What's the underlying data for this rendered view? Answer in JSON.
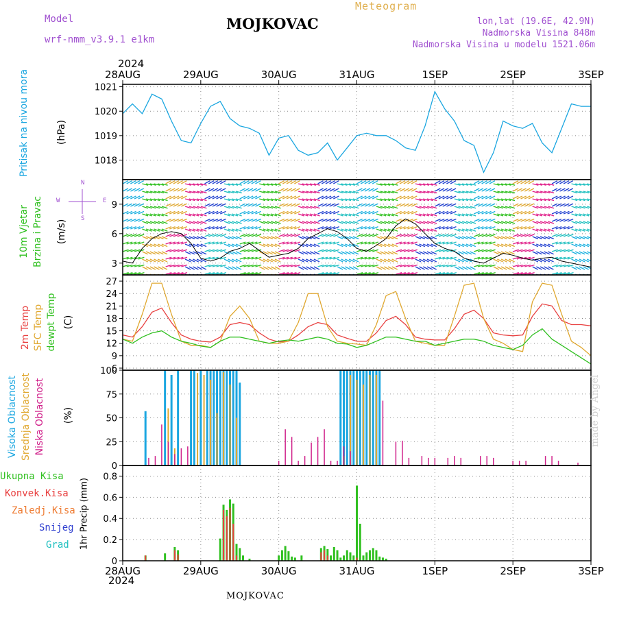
{
  "header": {
    "model_label": "Model",
    "model_name": "wrf-nmm_v3.9.1 e1km",
    "title": "MOJKOVAC",
    "subtitle": "Meteogram",
    "coords": "lon,lat (19.6E, 42.9N)",
    "elevation": "Nadmorska Visina 848m",
    "model_elevation": "Nadmorska Visina u modelu 1521.06m"
  },
  "footer": {
    "station": "MOJKOVAC"
  },
  "watermark": "made by Angel",
  "axis_top": {
    "year": "2024"
  },
  "axis_bottom": {
    "year": "2024"
  },
  "colors": {
    "pressure": "#1aa6e0",
    "wind_speed": "#000000",
    "temp2m": "#e84040",
    "sfc_temp": "#e0a830",
    "dewpt": "#30c020",
    "cloud_high": "#1aa6e0",
    "cloud_mid": "#e0a830",
    "cloud_low": "#d0208a",
    "precip_total": "#30c020",
    "precip_conv": "#e84040"
  },
  "chart_data": [
    {
      "type": "line",
      "ylabel": "Pritisak na nivou mora",
      "unit": "(hPa)",
      "ylim": [
        1017.2,
        1021.1
      ],
      "yticks": [
        1018,
        1019,
        1020,
        1021
      ],
      "x_tick_labels": [
        "28AUG",
        "29AUG",
        "30AUG",
        "31AUG",
        "1SEP",
        "2SEP",
        "3SEP"
      ],
      "series": [
        {
          "name": "",
          "x_hours": [
            0,
            3,
            6,
            9,
            12,
            15,
            18,
            21,
            24,
            27,
            30,
            33,
            36,
            39,
            42,
            45,
            48,
            51,
            54,
            57,
            60,
            63,
            66,
            69,
            72,
            75,
            78,
            81,
            84,
            87,
            90,
            93,
            96,
            99,
            102,
            105,
            108,
            111,
            114,
            117,
            120,
            123,
            126,
            129,
            132,
            135,
            138,
            141,
            144
          ],
          "values": [
            1019.9,
            1020.3,
            1019.9,
            1020.7,
            1020.5,
            1019.6,
            1018.8,
            1018.7,
            1019.5,
            1020.2,
            1020.4,
            1019.7,
            1019.4,
            1019.3,
            1019.1,
            1018.2,
            1018.9,
            1019.0,
            1018.4,
            1018.2,
            1018.3,
            1018.7,
            1018.0,
            1018.5,
            1019.0,
            1019.1,
            1019.0,
            1019.0,
            1018.8,
            1018.5,
            1018.4,
            1019.4,
            1020.8,
            1020.1,
            1019.6,
            1018.8,
            1018.6,
            1017.5,
            1018.3,
            1019.6,
            1019.4,
            1019.3,
            1019.5,
            1018.7,
            1018.3,
            1019.3,
            1020.3,
            1020.2,
            1020.2
          ]
        }
      ]
    },
    {
      "type": "line",
      "ylabel_1": "10m Vjetar",
      "ylabel_2": "Brzina i Pravac",
      "unit": "(m/s)",
      "compass": {
        "n": "N",
        "s": "S",
        "w": "W",
        "e": "E"
      },
      "ylim": [
        1.8,
        11.5
      ],
      "yticks": [
        3,
        6,
        9
      ],
      "series": [
        {
          "name": "",
          "x_hours": [
            0,
            3,
            6,
            9,
            12,
            15,
            18,
            21,
            24,
            27,
            30,
            33,
            36,
            39,
            42,
            45,
            48,
            51,
            54,
            57,
            60,
            63,
            66,
            69,
            72,
            75,
            78,
            81,
            84,
            87,
            90,
            93,
            96,
            99,
            102,
            105,
            108,
            111,
            114,
            117,
            120,
            123,
            126,
            129,
            132,
            135,
            138,
            141,
            144
          ],
          "values": [
            3.2,
            3.0,
            4.5,
            5.5,
            6.0,
            6.2,
            6.0,
            5.0,
            3.5,
            3.2,
            3.5,
            4.2,
            4.5,
            5.0,
            4.3,
            3.6,
            3.8,
            4.0,
            4.5,
            5.5,
            6.0,
            6.5,
            6.2,
            5.5,
            4.5,
            4.2,
            4.8,
            5.5,
            6.8,
            7.5,
            7.0,
            6.0,
            5.0,
            4.5,
            4.2,
            3.5,
            3.2,
            3.0,
            3.5,
            4.0,
            3.8,
            3.5,
            3.3,
            3.5,
            3.6,
            3.2,
            3.0,
            2.8,
            2.6
          ]
        }
      ]
    },
    {
      "type": "line",
      "ylabel_1": "2m Temp",
      "ylabel_2": "SFC Temp",
      "ylabel_3": "dewpt Temp",
      "unit": "(C)",
      "ylim": [
        5.5,
        28.5
      ],
      "yticks": [
        6,
        9,
        12,
        15,
        18,
        21,
        24,
        27
      ],
      "x_hours": [
        0,
        3,
        6,
        9,
        12,
        15,
        18,
        21,
        24,
        27,
        30,
        33,
        36,
        39,
        42,
        45,
        48,
        51,
        54,
        57,
        60,
        63,
        66,
        69,
        72,
        75,
        78,
        81,
        84,
        87,
        90,
        93,
        96,
        99,
        102,
        105,
        108,
        111,
        114,
        117,
        120,
        123,
        126,
        129,
        132,
        135,
        138,
        141,
        144
      ],
      "series": [
        {
          "name": "2m Temp",
          "values": [
            14.0,
            13.5,
            16.0,
            19.5,
            20.5,
            17.0,
            14.0,
            13.0,
            12.5,
            12.3,
            13.5,
            16.5,
            17.0,
            16.5,
            14.5,
            13.0,
            12.3,
            12.5,
            14.0,
            16.0,
            17.0,
            16.5,
            14.0,
            13.2,
            12.5,
            12.5,
            14.5,
            17.5,
            18.5,
            16.5,
            13.5,
            13.0,
            12.8,
            12.8,
            15.5,
            19.0,
            20.0,
            18.0,
            14.5,
            14.0,
            13.8,
            14.0,
            18.5,
            21.5,
            21.0,
            17.5,
            16.5,
            16.5,
            16.2
          ]
        },
        {
          "name": "SFC Temp",
          "values": [
            13.0,
            12.5,
            19.0,
            26.5,
            26.5,
            19.0,
            12.5,
            11.5,
            11.5,
            11.0,
            12.5,
            18.5,
            21.0,
            18.0,
            12.5,
            12.0,
            12.0,
            12.5,
            17.0,
            24.0,
            24.0,
            16.0,
            12.5,
            12.0,
            11.8,
            11.5,
            16.5,
            23.5,
            24.5,
            18.0,
            12.5,
            12.0,
            11.5,
            11.5,
            18.5,
            26.0,
            26.5,
            18.0,
            13.0,
            12.0,
            10.5,
            10.0,
            22.0,
            26.5,
            26.0,
            19.0,
            12.5,
            11.0,
            9.0
          ]
        },
        {
          "name": "dewpt Temp",
          "values": [
            13.0,
            12.0,
            13.5,
            14.5,
            15.0,
            13.5,
            12.5,
            12.0,
            11.3,
            11.0,
            12.5,
            13.5,
            13.5,
            13.0,
            12.5,
            12.0,
            12.5,
            12.8,
            12.5,
            13.0,
            13.5,
            13.0,
            12.0,
            11.8,
            11.0,
            11.5,
            12.5,
            13.5,
            13.5,
            13.0,
            12.5,
            12.5,
            11.5,
            12.0,
            12.5,
            13.0,
            13.0,
            12.5,
            11.5,
            11.0,
            10.5,
            11.5,
            14.0,
            15.5,
            13.0,
            11.5,
            10.0,
            8.5,
            7.0
          ]
        }
      ]
    },
    {
      "type": "bar",
      "ylabel_1": "Visoka Oblacnost",
      "ylabel_2": "Srednja Oblacnost",
      "ylabel_3": "Niska Oblacnost",
      "unit": "(%)",
      "ylim": [
        0,
        100
      ],
      "yticks": [
        0,
        25,
        50,
        75,
        100
      ],
      "series": [
        {
          "name": "Visoka Oblacnost",
          "x_hours": [
            7,
            13,
            15,
            17,
            21,
            22,
            24,
            26,
            27,
            28,
            29,
            30,
            31,
            32,
            33,
            34,
            35,
            36,
            67,
            68,
            69,
            70,
            71,
            72,
            73,
            74,
            75,
            76,
            77,
            78,
            79
          ],
          "values": [
            57,
            100,
            95,
            100,
            100,
            100,
            100,
            100,
            100,
            100,
            100,
            100,
            100,
            100,
            100,
            100,
            100,
            87,
            100,
            100,
            100,
            100,
            100,
            100,
            100,
            100,
            100,
            100,
            100,
            100,
            100
          ]
        },
        {
          "name": "Srednja Oblacnost",
          "x_hours": [
            14,
            16,
            23,
            25,
            27,
            29,
            31,
            33,
            35,
            68,
            70,
            72,
            74,
            76,
            78
          ],
          "values": [
            60,
            18,
            97,
            95,
            90,
            55,
            98,
            85,
            50,
            10,
            95,
            90,
            85,
            95,
            95
          ]
        },
        {
          "name": "Niska Oblacnost",
          "x_hours": [
            8,
            10,
            12,
            14,
            16,
            18,
            20,
            48,
            50,
            52,
            54,
            56,
            58,
            60,
            62,
            64,
            66,
            68,
            70,
            80,
            84,
            86,
            88,
            92,
            94,
            96,
            100,
            102,
            104,
            110,
            112,
            114,
            120,
            122,
            124,
            130,
            132,
            134,
            140
          ],
          "values": [
            8,
            10,
            43,
            25,
            12,
            18,
            20,
            5,
            38,
            30,
            5,
            10,
            24,
            30,
            38,
            5,
            5,
            20,
            15,
            68,
            25,
            26,
            8,
            10,
            8,
            8,
            8,
            10,
            8,
            10,
            10,
            8,
            5,
            5,
            5,
            10,
            10,
            5,
            3
          ]
        }
      ]
    },
    {
      "type": "bar",
      "ylabel": "1hr Precip",
      "unit": "(mm)",
      "legend_title": [
        "Ukupna Kisa",
        "Konvek.Kisa",
        "Zaledj.Kisa",
        "Snijeg",
        "Grad"
      ],
      "ylim": [
        0,
        0.9
      ],
      "yticks": [
        0,
        0.2,
        0.4,
        0.6,
        0.8
      ],
      "x_tick_labels": [
        "28AUG",
        "29AUG",
        "30AUG",
        "31AUG",
        "1SEP",
        "2SEP",
        "3SEP"
      ],
      "series": [
        {
          "name": "Ukupna Kisa",
          "x_hours": [
            7,
            13,
            16,
            17,
            30,
            31,
            32,
            33,
            34,
            35,
            36,
            37,
            39,
            48,
            49,
            50,
            51,
            52,
            53,
            55,
            61,
            62,
            63,
            64,
            65,
            66,
            67,
            68,
            69,
            70,
            71,
            72,
            73,
            74,
            75,
            76,
            77,
            78,
            79,
            80,
            81
          ],
          "values": [
            0.05,
            0.07,
            0.13,
            0.1,
            0.21,
            0.53,
            0.48,
            0.58,
            0.54,
            0.16,
            0.12,
            0.05,
            0.02,
            0.05,
            0.1,
            0.14,
            0.09,
            0.04,
            0.03,
            0.05,
            0.12,
            0.14,
            0.11,
            0.05,
            0.13,
            0.1,
            0.03,
            0.05,
            0.1,
            0.08,
            0.05,
            0.71,
            0.35,
            0.05,
            0.08,
            0.1,
            0.12,
            0.1,
            0.04,
            0.03,
            0.02
          ]
        },
        {
          "name": "Konvek.Kisa",
          "x_hours": [
            7,
            16,
            17,
            31,
            32,
            33,
            34,
            35,
            61,
            62,
            63,
            72
          ],
          "values": [
            0.05,
            0.1,
            0.06,
            0.48,
            0.42,
            0.5,
            0.35,
            0.05,
            0.08,
            0.1,
            0.05,
            0.03
          ]
        }
      ]
    }
  ]
}
